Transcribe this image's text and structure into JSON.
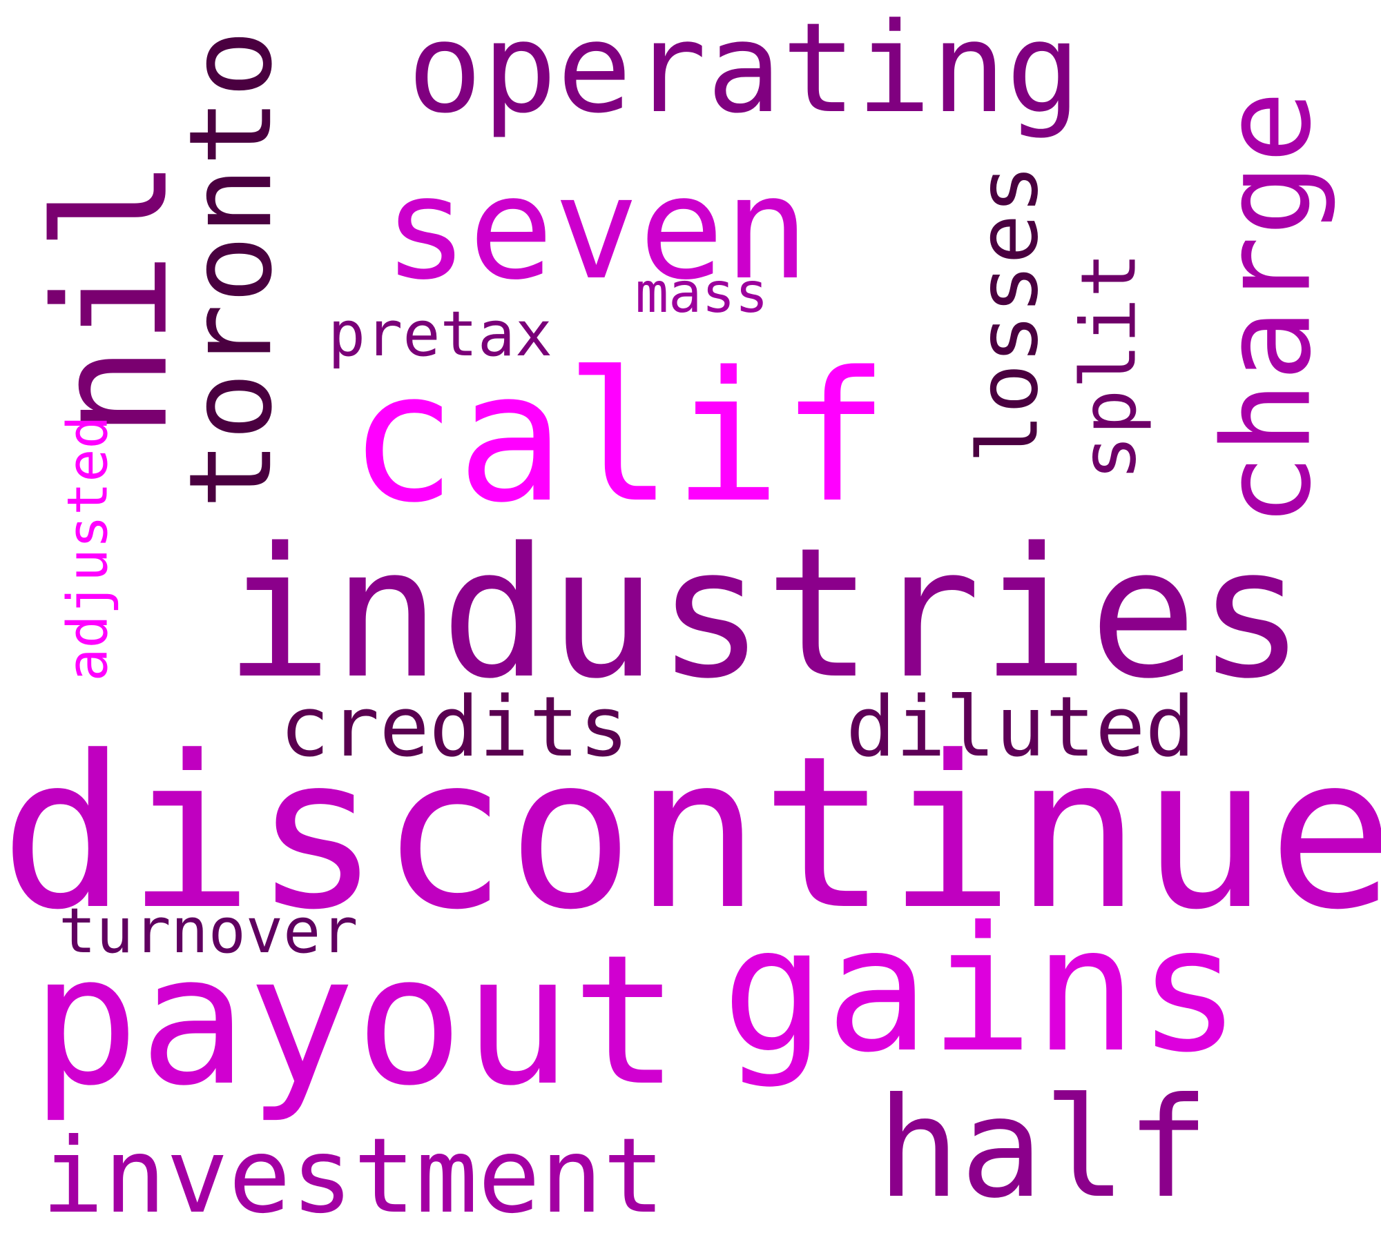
{
  "words": [
    {
      "id": "discontinued",
      "text": "discontinued",
      "color": "#c000c0",
      "orientation": "horizontal"
    },
    {
      "id": "industries",
      "text": "industries",
      "color": "#8b008b",
      "orientation": "horizontal"
    },
    {
      "id": "payout",
      "text": "payout",
      "color": "#d000d0",
      "orientation": "horizontal"
    },
    {
      "id": "gains",
      "text": "gains",
      "color": "#dd00dd",
      "orientation": "horizontal"
    },
    {
      "id": "calif",
      "text": "calif",
      "color": "#ff00ff",
      "orientation": "horizontal"
    },
    {
      "id": "seven",
      "text": "seven",
      "color": "#cc00cc",
      "orientation": "horizontal"
    },
    {
      "id": "operating",
      "text": "operating",
      "color": "#800080",
      "orientation": "horizontal"
    },
    {
      "id": "half",
      "text": "half",
      "color": "#8b008b",
      "orientation": "horizontal"
    },
    {
      "id": "investment",
      "text": "investment",
      "color": "#a300a3",
      "orientation": "horizontal"
    },
    {
      "id": "credits",
      "text": "credits",
      "color": "#5a0050",
      "orientation": "horizontal"
    },
    {
      "id": "diluted",
      "text": "diluted",
      "color": "#5e0057",
      "orientation": "horizontal"
    },
    {
      "id": "turnover",
      "text": "turnover",
      "color": "#600060",
      "orientation": "horizontal"
    },
    {
      "id": "pretax",
      "text": "pretax",
      "color": "#7a0078",
      "orientation": "horizontal"
    },
    {
      "id": "mass",
      "text": "mass",
      "color": "#9c009c",
      "orientation": "horizontal"
    },
    {
      "id": "nil",
      "text": "nil",
      "color": "#7a0070",
      "orientation": "vertical"
    },
    {
      "id": "toronto",
      "text": "toronto",
      "color": "#4a0040",
      "orientation": "vertical"
    },
    {
      "id": "losses",
      "text": "losses",
      "color": "#4a0040",
      "orientation": "vertical"
    },
    {
      "id": "split",
      "text": "split",
      "color": "#6e0068",
      "orientation": "vertical"
    },
    {
      "id": "charge",
      "text": "charge",
      "color": "#a800a8",
      "orientation": "vertical"
    },
    {
      "id": "adjusted",
      "text": "adjusted",
      "color": "#ff00ff",
      "orientation": "vertical"
    }
  ]
}
